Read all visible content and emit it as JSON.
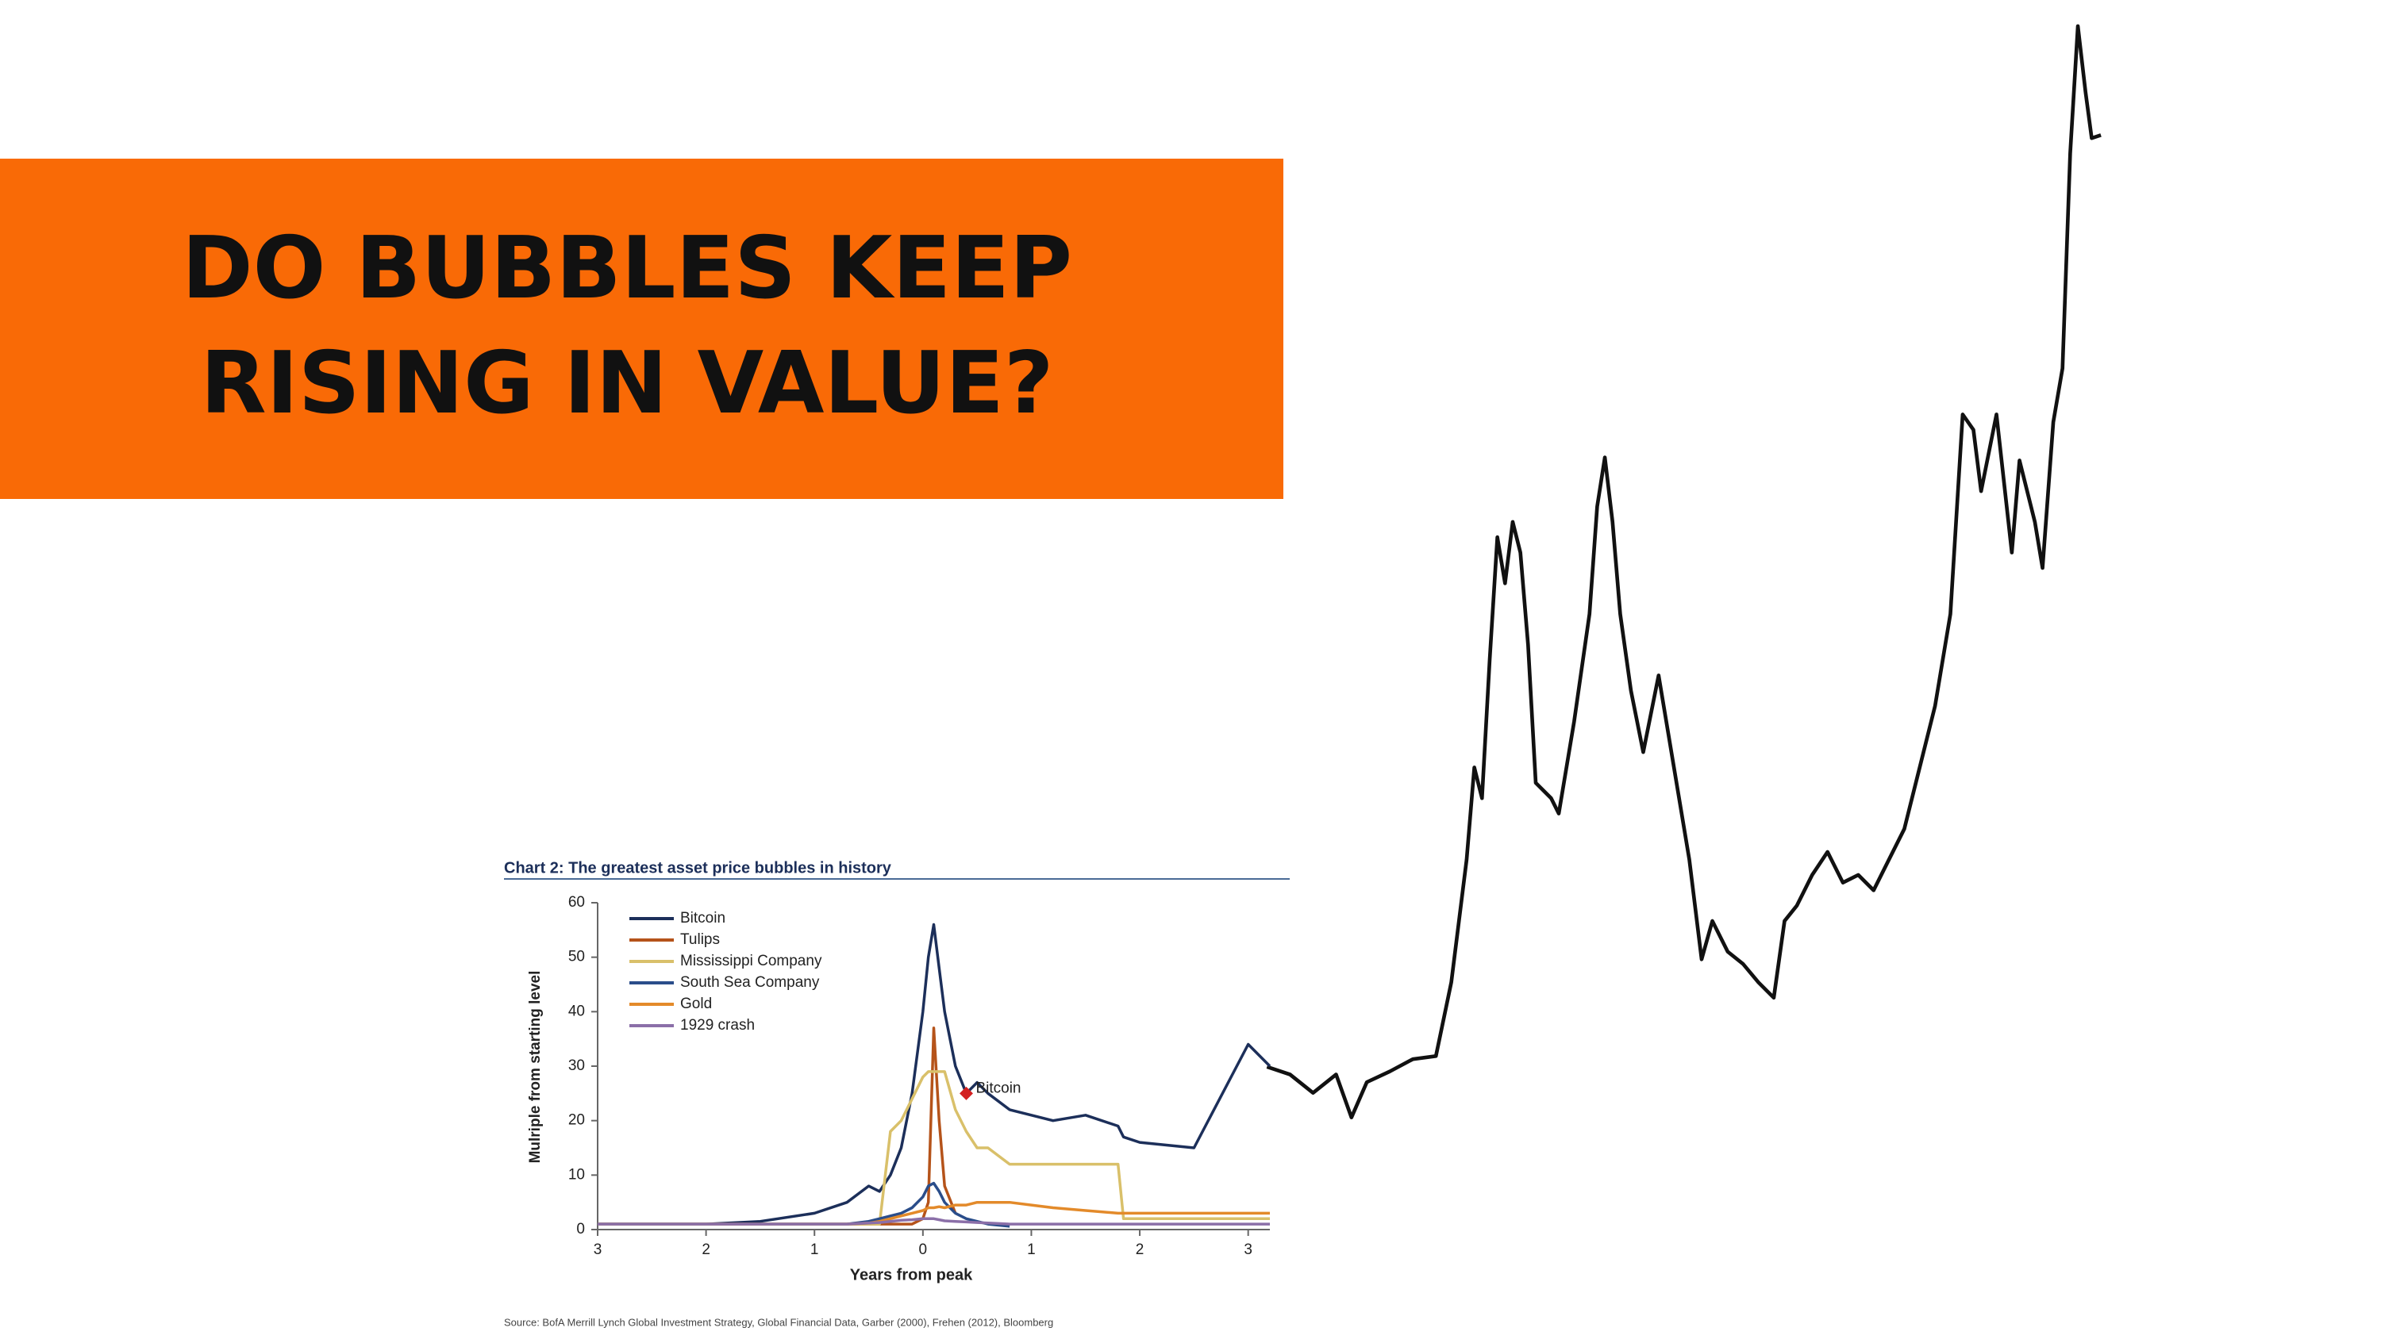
{
  "heading": {
    "lines": [
      "DO BUBBLES KEEP",
      "RISING IN VALUE?"
    ]
  },
  "chart_data": {
    "type": "line",
    "title": "Chart 2: The greatest asset price bubbles in history",
    "x_label": "Years from peak",
    "y_label": "Mulriple from starting level",
    "annotation": "Bitcoin",
    "source": "Source:  BofA Merrill Lynch Global Investment Strategy, Global Financial Data, Garber (2000), Frehen (2012),  Bloomberg",
    "x": [
      -3,
      -2.5,
      -2,
      -1.5,
      -1,
      -0.7,
      -0.5,
      -0.4,
      -0.3,
      -0.2,
      -0.1,
      0,
      0.05,
      0.1,
      0.15,
      0.2,
      0.3,
      0.4,
      0.5,
      0.6,
      0.8,
      1,
      1.2,
      1.5,
      1.8,
      1.85,
      2,
      2.5,
      3,
      3.2
    ],
    "series": [
      {
        "name": "Bitcoin",
        "color": "#1c2f5a",
        "values": [
          1,
          1,
          1,
          1.5,
          3,
          5,
          8,
          7,
          10,
          15,
          25,
          40,
          50,
          56,
          48,
          40,
          30,
          25,
          27,
          25,
          22,
          21,
          20,
          21,
          19,
          17,
          16,
          15,
          34,
          30
        ]
      },
      {
        "name": "Tulips",
        "color": "#b5531a",
        "values": [
          1,
          1,
          1,
          1,
          1,
          1,
          1,
          1,
          1,
          1,
          1,
          2,
          5,
          37,
          20,
          8,
          3,
          null,
          null,
          null,
          null,
          null,
          null,
          null,
          null,
          null,
          null,
          null,
          null,
          null
        ]
      },
      {
        "name": "Mississippi Company",
        "color": "#d9c06a",
        "values": [
          1,
          1,
          1,
          1,
          1,
          1,
          1,
          1,
          18,
          20,
          24,
          28,
          29,
          29,
          29,
          29,
          22,
          18,
          15,
          15,
          12,
          12,
          12,
          12,
          12,
          2,
          2,
          2,
          2,
          2
        ]
      },
      {
        "name": "South Sea Company",
        "color": "#2a4d8a",
        "values": [
          1,
          1,
          1,
          1,
          1,
          1,
          1.5,
          2,
          2.5,
          3,
          4,
          6,
          8,
          8.5,
          7,
          5,
          3,
          2,
          1.5,
          1,
          0.6,
          null,
          null,
          null,
          null,
          null,
          null,
          null,
          null,
          null
        ]
      },
      {
        "name": "Gold",
        "color": "#e38a2a",
        "values": [
          1,
          1,
          1,
          1,
          1,
          1,
          1.2,
          1.5,
          2,
          2.5,
          3,
          3.5,
          4,
          4,
          4.2,
          4,
          4.5,
          4.5,
          5,
          5,
          5,
          4.5,
          4,
          3.5,
          3,
          3,
          3,
          3,
          3,
          3
        ]
      },
      {
        "name": "1929 crash",
        "color": "#8b6fa8",
        "values": [
          1,
          1,
          1,
          1,
          1,
          1,
          1.2,
          1.3,
          1.5,
          1.7,
          1.8,
          2,
          2,
          2,
          1.8,
          1.6,
          1.5,
          1.4,
          1.3,
          1.2,
          1,
          1,
          1,
          1,
          1,
          1,
          1,
          1,
          1,
          1
        ]
      }
    ],
    "xlim": [
      -3,
      3.2
    ],
    "ylim": [
      0,
      60
    ],
    "xticks": [
      {
        "value": -3,
        "label": "3"
      },
      {
        "value": -2,
        "label": "2"
      },
      {
        "value": -1,
        "label": "1"
      },
      0,
      1,
      2,
      3
    ],
    "yticks": [
      0,
      10,
      20,
      30,
      40,
      50,
      60
    ],
    "grid": false,
    "legend": "upper left"
  }
}
